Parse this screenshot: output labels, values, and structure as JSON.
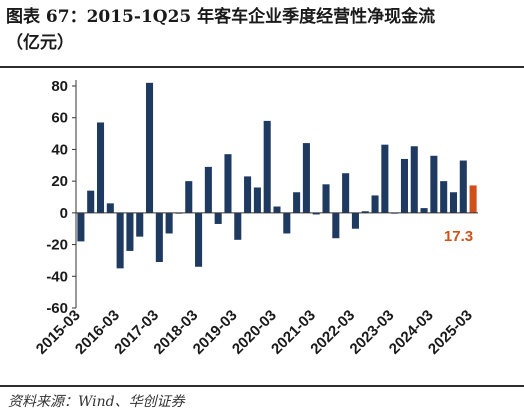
{
  "header": {
    "title": "图表 67：2015-1Q25 年客车企业季度经营性净现金流",
    "unit": "（亿元）"
  },
  "footer": {
    "source": "资料来源：Wind、华创证券"
  },
  "colors": {
    "bar": "#1f3a60",
    "highlight": "#d0501a"
  },
  "chart_data": {
    "type": "bar",
    "title": "2015-1Q25 年客车企业季度经营性净现金流",
    "ylabel": "",
    "xlabel": "",
    "ylim": [
      -60,
      80
    ],
    "yticks": [
      80,
      60,
      40,
      20,
      0,
      -20,
      -40,
      -60
    ],
    "x_tick_labels": [
      "2015-03",
      "2016-03",
      "2017-03",
      "2018-03",
      "2019-03",
      "2020-03",
      "2021-03",
      "2022-03",
      "2023-03",
      "2024-03",
      "2025-03"
    ],
    "categories": [
      "2015-03",
      "2015-06",
      "2015-09",
      "2015-12",
      "2016-03",
      "2016-06",
      "2016-09",
      "2016-12",
      "2017-03",
      "2017-06",
      "2017-09",
      "2017-12",
      "2018-03",
      "2018-06",
      "2018-09",
      "2018-12",
      "2019-03",
      "2019-06",
      "2019-09",
      "2019-12",
      "2020-03",
      "2020-06",
      "2020-09",
      "2020-12",
      "2021-03",
      "2021-06",
      "2021-09",
      "2021-12",
      "2022-03",
      "2022-06",
      "2022-09",
      "2022-12",
      "2023-03",
      "2023-06",
      "2023-09",
      "2023-12",
      "2024-03",
      "2024-06",
      "2024-09",
      "2024-12",
      "2025-03"
    ],
    "values": [
      -18,
      14,
      57,
      6,
      -35,
      -24,
      -15,
      82,
      -31,
      -13,
      0,
      20,
      -34,
      29,
      -7,
      37,
      -17,
      23,
      16,
      58,
      4,
      -13,
      13,
      44,
      -1,
      18,
      -16,
      25,
      -10,
      1,
      11,
      43,
      0,
      34,
      42,
      3,
      36,
      20,
      13,
      33,
      17.3
    ],
    "highlight_last": true,
    "annotation": "17.3",
    "grid": false
  }
}
